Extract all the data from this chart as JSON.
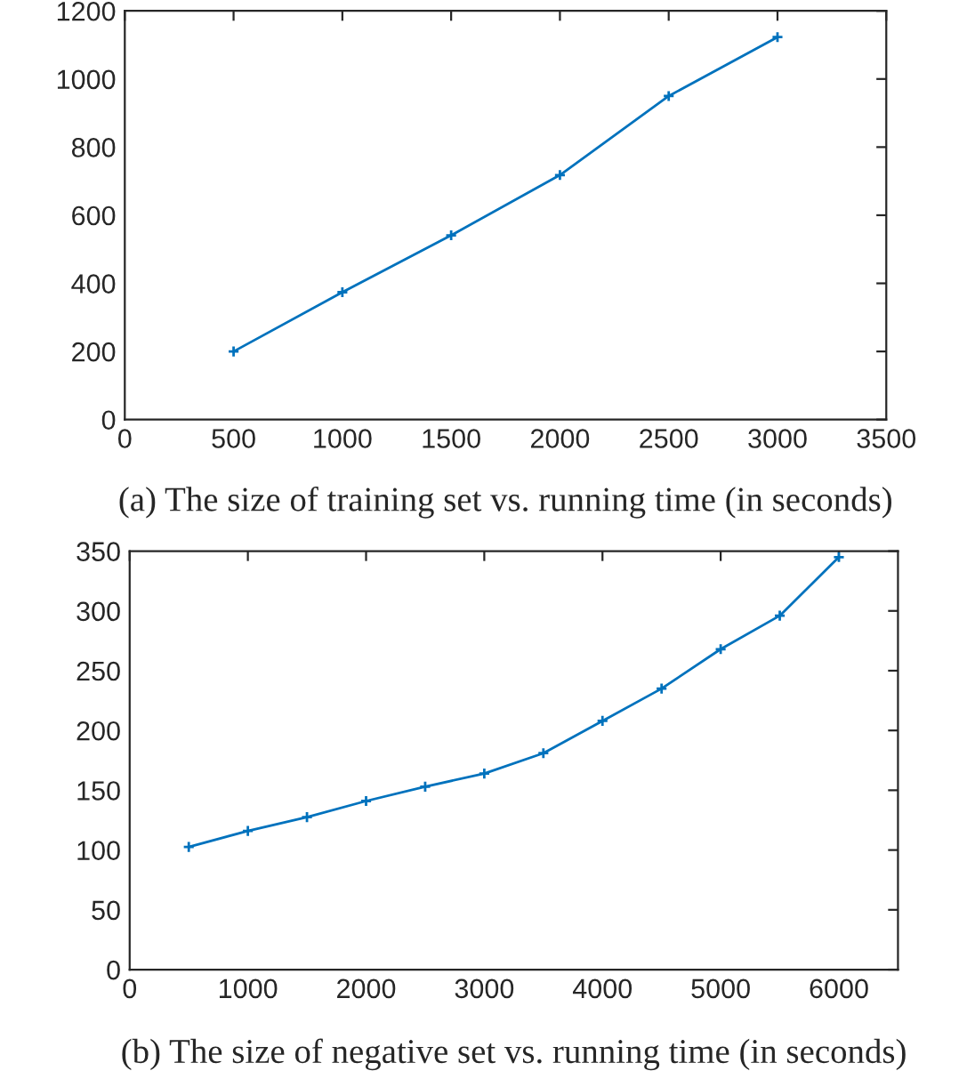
{
  "chart_data": [
    {
      "type": "line",
      "title": "(a) The size of training set vs. running time (in seconds)",
      "x": [
        500,
        1000,
        1500,
        2000,
        2500,
        3000
      ],
      "series": [
        {
          "color": "#0072bd",
          "values": [
            200,
            374,
            541,
            718,
            950,
            1123
          ]
        }
      ],
      "xlim": [
        0,
        3500
      ],
      "xticks": [
        0,
        500,
        1000,
        1500,
        2000,
        2500,
        3000,
        3500
      ],
      "ylim": [
        0,
        1200
      ],
      "yticks": [
        0,
        200,
        400,
        600,
        800,
        1000,
        1200
      ],
      "grid": false,
      "marker": "cross",
      "line_style": "solid"
    },
    {
      "type": "line",
      "title": "(b) The size of negative set vs. running time (in seconds)",
      "x": [
        500,
        1000,
        1500,
        2000,
        2500,
        3000,
        3500,
        4000,
        4500,
        5000,
        5500,
        6000
      ],
      "series": [
        {
          "color": "#0072bd",
          "values": [
            102.6,
            116,
            127.5,
            141,
            153,
            164,
            181,
            208,
            235,
            268,
            296,
            345
          ]
        }
      ],
      "xlim": [
        0,
        6500
      ],
      "xticks": [
        0,
        1000,
        2000,
        3000,
        4000,
        5000,
        6000
      ],
      "ylim": [
        0,
        350
      ],
      "yticks": [
        0,
        50,
        100,
        150,
        200,
        250,
        300,
        350
      ],
      "grid": false,
      "marker": "cross",
      "line_style": "solid"
    }
  ]
}
